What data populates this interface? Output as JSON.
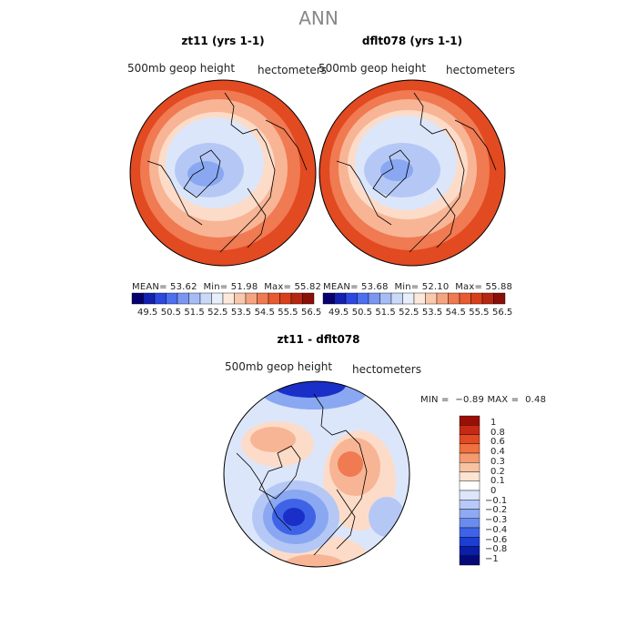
{
  "figure_title": "ANN",
  "panels": [
    {
      "title": "zt11 (yrs 1-1)",
      "variable": "500mb geop height",
      "units": "hectometers",
      "stats": {
        "mean_label": "MEAN=",
        "mean": "53.62",
        "min_label": "Min=",
        "min": "51.98",
        "max_label": "Max=",
        "max": "55.82"
      }
    },
    {
      "title": "dflt078 (yrs 1-1)",
      "variable": "500mb geop height",
      "units": "hectometers",
      "stats": {
        "mean_label": "MEAN=",
        "mean": "53.68",
        "min_label": "Min=",
        "min": "52.10",
        "max_label": "Max=",
        "max": "55.88"
      }
    },
    {
      "title": "zt11 - dflt078",
      "variable": "500mb geop height",
      "units": "hectometers",
      "stats": {
        "min_label": "MIN =",
        "min": "−0.89",
        "max_label": "MAX =",
        "max": "0.48"
      }
    }
  ],
  "colorbar_top": {
    "labels": [
      "49.5",
      "50.5",
      "51.5",
      "52.5",
      "53.5",
      "54.5",
      "55.5",
      "56.5"
    ],
    "colors": [
      "#08006e",
      "#1320b0",
      "#2c48e0",
      "#4d6ff0",
      "#7a96f2",
      "#a6bcf5",
      "#cbd9f8",
      "#e8eefb",
      "#fde9dc",
      "#f9c9ad",
      "#f5a47f",
      "#ef7a52",
      "#e85a30",
      "#d8401c",
      "#b62712",
      "#8a0f09"
    ]
  },
  "colorbar_diff": {
    "labels": [
      "1",
      "0.8",
      "0.6",
      "0.4",
      "0.3",
      "0.2",
      "0.1",
      "0",
      "−0.1",
      "−0.2",
      "−0.3",
      "−0.4",
      "−0.6",
      "−0.8",
      "−1"
    ],
    "colors": [
      "#9a0e08",
      "#c52a14",
      "#e24a22",
      "#f07040",
      "#f39a70",
      "#f8c2a2",
      "#fce3d2",
      "#ffffff",
      "#dce6fa",
      "#b7c9f6",
      "#8eaaf2",
      "#6a8cee",
      "#3f63e6",
      "#1d3ed2",
      "#0a1ea8",
      "#050a78"
    ]
  },
  "map_colors": {
    "deep_red": "#e24a22",
    "mid_red": "#f07a52",
    "light_red": "#f8b595",
    "pale_red": "#fcdcc8",
    "pale_blue": "#dce6fa",
    "light_blue": "#b5c8f5",
    "mid_blue": "#8aa8f1",
    "deep_blue": "#3f63e6",
    "darkest_blue": "#1a2fc8"
  }
}
